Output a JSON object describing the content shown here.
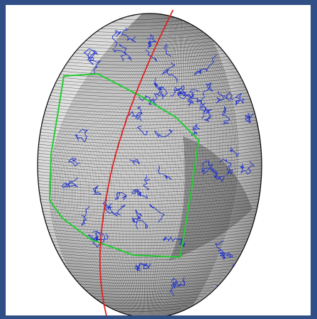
{
  "window": {
    "frame_color": "#2f4f86",
    "background_color": "#ffffff"
  },
  "scene": {
    "description_icon": "globe-mesh-icon",
    "mesh_color": "#000000",
    "coastline_color": "#2233cc",
    "boundary_color": "#22cc33",
    "meridian_color": "#dd2222"
  }
}
